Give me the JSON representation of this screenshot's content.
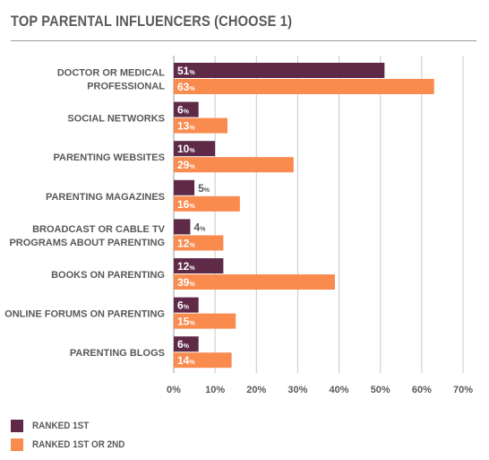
{
  "title": "TOP PARENTAL INFLUENCERS (CHOOSE 1)",
  "colors": {
    "ranked_1st": "#5e2a47",
    "ranked_1st_or_2nd": "#f98b4f",
    "grid": "#c8c8c8",
    "axis": "#58595b"
  },
  "legend": [
    {
      "label": "RANKED 1ST",
      "color": "#5e2a47"
    },
    {
      "label": "RANKED 1ST OR 2ND",
      "color": "#f98b4f"
    }
  ],
  "chart_data": {
    "type": "bar",
    "orientation": "horizontal",
    "title": "TOP PARENTAL INFLUENCERS (CHOOSE 1)",
    "categories": [
      [
        "DOCTOR OR MEDICAL",
        "PROFESSIONAL"
      ],
      [
        "SOCIAL NETWORKS"
      ],
      [
        "PARENTING WEBSITES"
      ],
      [
        "PARENTING MAGAZINES"
      ],
      [
        "BROADCAST OR CABLE TV",
        "PROGRAMS ABOUT PARENTING"
      ],
      [
        "BOOKS ON PARENTING"
      ],
      [
        "ONLINE FORUMS ON PARENTING"
      ],
      [
        "PARENTING BLOGS"
      ]
    ],
    "series": [
      {
        "name": "RANKED 1ST",
        "values": [
          51,
          6,
          10,
          5,
          4,
          12,
          6,
          6
        ]
      },
      {
        "name": "RANKED 1ST OR 2ND",
        "values": [
          63,
          13,
          29,
          16,
          12,
          39,
          15,
          14
        ]
      }
    ],
    "xlim": [
      0,
      70
    ],
    "xticks": [
      "0%",
      "10%",
      "20%",
      "30%",
      "40%",
      "50%",
      "60%",
      "70%"
    ],
    "value_suffix": "%",
    "grid": true,
    "legend_position": "bottom-left"
  }
}
